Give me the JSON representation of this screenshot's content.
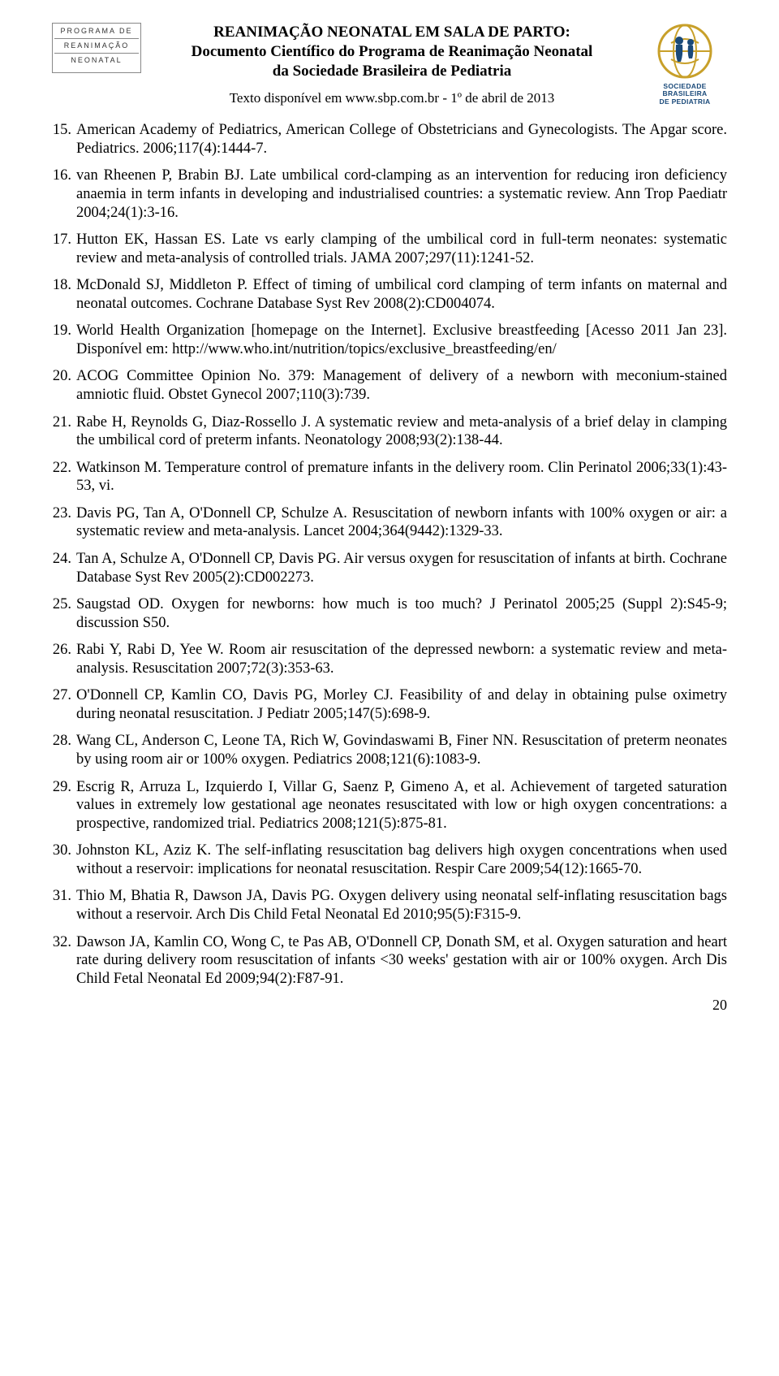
{
  "header": {
    "logo_left_l1": "PROGRAMA DE",
    "logo_left_l2": "REANIMAÇÃO",
    "logo_left_l3": "NEONATAL",
    "title_l1": "REANIMAÇÃO NEONATAL EM SALA DE PARTO:",
    "title_l2": "Documento Científico do Programa de Reanimação Neonatal",
    "title_l3": "da Sociedade Brasileira de Pediatria",
    "sub": "Texto disponível em www.sbp.com.br - 1º de abril de 2013",
    "logo_right_l1": "SOCIEDADE BRASILEIRA",
    "logo_right_l2": "DE PEDIATRIA"
  },
  "refs": [
    {
      "n": "15.",
      "t": "American Academy of Pediatrics, American College of Obstetricians and Gynecologists. The Apgar score. Pediatrics. 2006;117(4):1444-7."
    },
    {
      "n": "16.",
      "t": "van Rheenen P, Brabin BJ. Late umbilical cord-clamping as an intervention for reducing iron deficiency anaemia in term infants in developing and industrialised countries: a systematic review. Ann Trop Paediatr 2004;24(1):3-16."
    },
    {
      "n": "17.",
      "t": "Hutton EK, Hassan ES. Late vs early clamping of the umbilical cord in full-term neonates: systematic review and meta-analysis of controlled trials. JAMA 2007;297(11):1241-52."
    },
    {
      "n": "18.",
      "t": "McDonald SJ, Middleton P. Effect of timing of umbilical cord clamping of term infants on maternal and neonatal outcomes. Cochrane Database Syst Rev 2008(2):CD004074."
    },
    {
      "n": "19.",
      "t": "World Health Organization [homepage on the Internet]. Exclusive breastfeeding [Acesso 2011 Jan 23]. Disponível em: http://www.who.int/nutrition/topics/exclusive_breastfeeding/en/"
    },
    {
      "n": "20.",
      "t": "ACOG Committee Opinion No. 379: Management of delivery of a newborn with meconium-stained amniotic fluid. Obstet Gynecol 2007;110(3):739."
    },
    {
      "n": "21.",
      "t": "Rabe H, Reynolds G, Diaz-Rossello J. A systematic review and meta-analysis of a brief delay in clamping the umbilical cord of preterm infants. Neonatology 2008;93(2):138-44."
    },
    {
      "n": "22.",
      "t": "Watkinson M. Temperature control of premature infants in the delivery room. Clin Perinatol 2006;33(1):43-53, vi."
    },
    {
      "n": "23.",
      "t": "Davis PG, Tan A, O'Donnell CP, Schulze A. Resuscitation of newborn infants with 100% oxygen or air: a systematic review and meta-analysis. Lancet 2004;364(9442):1329-33."
    },
    {
      "n": "24.",
      "t": "Tan A, Schulze A, O'Donnell CP, Davis PG. Air versus oxygen for resuscitation of infants at birth. Cochrane Database Syst Rev 2005(2):CD002273."
    },
    {
      "n": "25.",
      "t": "Saugstad OD. Oxygen for newborns: how much is too much? J Perinatol 2005;25 (Suppl 2):S45-9; discussion S50."
    },
    {
      "n": "26.",
      "t": "Rabi Y, Rabi D, Yee W. Room air resuscitation of the depressed newborn: a systematic review and meta-analysis. Resuscitation 2007;72(3):353-63."
    },
    {
      "n": "27.",
      "t": "O'Donnell CP, Kamlin CO, Davis PG, Morley CJ. Feasibility of and delay in obtaining pulse oximetry during neonatal resuscitation. J Pediatr 2005;147(5):698-9."
    },
    {
      "n": "28.",
      "t": "Wang CL, Anderson C, Leone TA, Rich W, Govindaswami B, Finer NN. Resuscitation of preterm neonates by using room air or 100% oxygen. Pediatrics 2008;121(6):1083-9."
    },
    {
      "n": "29.",
      "t": "Escrig R, Arruza L, Izquierdo I, Villar G, Saenz P, Gimeno A, et al. Achievement of targeted saturation values in extremely low gestational age neonates resuscitated with low or high oxygen concentrations: a prospective, randomized trial. Pediatrics 2008;121(5):875-81."
    },
    {
      "n": "30.",
      "t": "Johnston KL, Aziz K. The self-inflating resuscitation bag delivers high oxygen concentrations when used without a reservoir: implications for neonatal resuscitation. Respir Care 2009;54(12):1665-70."
    },
    {
      "n": "31.",
      "t": "Thio M, Bhatia R, Dawson JA, Davis PG. Oxygen delivery using neonatal self-inflating resuscitation bags without a reservoir. Arch Dis Child Fetal Neonatal Ed 2010;95(5):F315-9."
    },
    {
      "n": "32.",
      "t": "Dawson JA, Kamlin CO, Wong C, te Pas AB, O'Donnell CP, Donath SM, et al. Oxygen saturation and heart rate during delivery room resuscitation of infants <30 weeks' gestation with air or 100% oxygen. Arch Dis Child Fetal Neonatal Ed 2009;94(2):F87-91."
    }
  ],
  "page_number": "20"
}
